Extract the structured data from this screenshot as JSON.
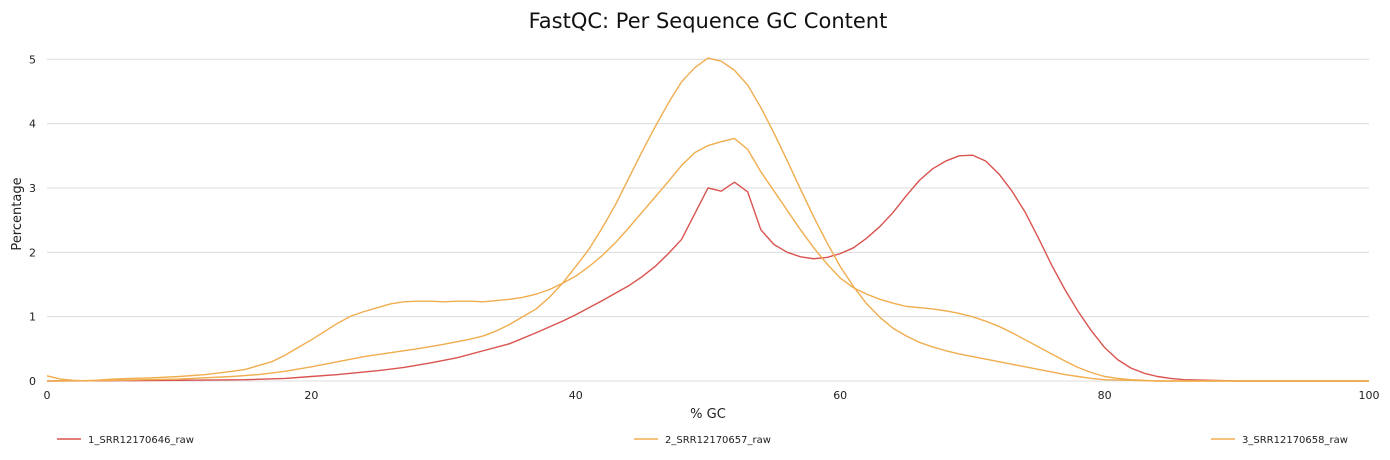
{
  "chart_data": {
    "type": "line",
    "title": "FastQC: Per Sequence GC Content",
    "xlabel": "% GC",
    "ylabel": "Percentage",
    "xlim": [
      0,
      100
    ],
    "ylim": [
      0,
      5.3
    ],
    "x_ticks": [
      0,
      20,
      40,
      60,
      80,
      100
    ],
    "y_ticks": [
      0,
      1,
      2,
      3,
      4,
      5
    ],
    "grid": "horizontal",
    "legend_position": "bottom",
    "series": [
      {
        "name": "1_SRR12170646_raw",
        "color": "#d9534f",
        "points": [
          [
            0,
            0
          ],
          [
            10,
            0.01
          ],
          [
            15,
            0.02
          ],
          [
            18,
            0.04
          ],
          [
            20,
            0.07
          ],
          [
            22,
            0.1
          ],
          [
            25,
            0.16
          ],
          [
            27,
            0.21
          ],
          [
            29,
            0.28
          ],
          [
            31,
            0.36
          ],
          [
            33,
            0.47
          ],
          [
            35,
            0.58
          ],
          [
            37,
            0.75
          ],
          [
            39,
            0.93
          ],
          [
            40,
            1.03
          ],
          [
            42,
            1.25
          ],
          [
            44,
            1.48
          ],
          [
            45,
            1.62
          ],
          [
            46,
            1.78
          ],
          [
            47,
            1.98
          ],
          [
            48,
            2.2
          ],
          [
            49,
            2.6
          ],
          [
            50,
            3.0
          ],
          [
            51,
            2.95
          ],
          [
            52,
            3.09
          ],
          [
            53,
            2.94
          ],
          [
            54,
            2.35
          ],
          [
            55,
            2.12
          ],
          [
            56,
            2.0
          ],
          [
            57,
            1.93
          ],
          [
            58,
            1.9
          ],
          [
            59,
            1.92
          ],
          [
            60,
            1.98
          ],
          [
            61,
            2.07
          ],
          [
            62,
            2.22
          ],
          [
            63,
            2.4
          ],
          [
            64,
            2.62
          ],
          [
            65,
            2.88
          ],
          [
            66,
            3.12
          ],
          [
            67,
            3.3
          ],
          [
            68,
            3.42
          ],
          [
            69,
            3.5
          ],
          [
            70,
            3.51
          ],
          [
            71,
            3.42
          ],
          [
            72,
            3.22
          ],
          [
            73,
            2.95
          ],
          [
            74,
            2.62
          ],
          [
            75,
            2.22
          ],
          [
            76,
            1.8
          ],
          [
            77,
            1.42
          ],
          [
            78,
            1.08
          ],
          [
            79,
            0.78
          ],
          [
            80,
            0.52
          ],
          [
            81,
            0.33
          ],
          [
            82,
            0.2
          ],
          [
            83,
            0.12
          ],
          [
            84,
            0.07
          ],
          [
            85,
            0.04
          ],
          [
            86,
            0.02
          ],
          [
            88,
            0.01
          ],
          [
            90,
            0
          ],
          [
            100,
            0
          ]
        ]
      },
      {
        "name": "2_SRR12170657_raw",
        "color": "#f0ad4e",
        "points": [
          [
            0,
            0.08
          ],
          [
            1,
            0.03
          ],
          [
            2,
            0.01
          ],
          [
            3,
            0
          ],
          [
            5,
            0.03
          ],
          [
            8,
            0.05
          ],
          [
            10,
            0.07
          ],
          [
            12,
            0.1
          ],
          [
            14,
            0.15
          ],
          [
            15,
            0.18
          ],
          [
            16,
            0.24
          ],
          [
            17,
            0.3
          ],
          [
            18,
            0.4
          ],
          [
            19,
            0.52
          ],
          [
            20,
            0.64
          ],
          [
            21,
            0.77
          ],
          [
            22,
            0.9
          ],
          [
            23,
            1.01
          ],
          [
            24,
            1.08
          ],
          [
            25,
            1.14
          ],
          [
            26,
            1.2
          ],
          [
            27,
            1.23
          ],
          [
            28,
            1.24
          ],
          [
            29,
            1.24
          ],
          [
            30,
            1.23
          ],
          [
            31,
            1.24
          ],
          [
            32,
            1.24
          ],
          [
            33,
            1.23
          ],
          [
            34,
            1.25
          ],
          [
            35,
            1.27
          ],
          [
            36,
            1.3
          ],
          [
            37,
            1.35
          ],
          [
            38,
            1.42
          ],
          [
            39,
            1.52
          ],
          [
            40,
            1.63
          ],
          [
            41,
            1.78
          ],
          [
            42,
            1.95
          ],
          [
            43,
            2.15
          ],
          [
            44,
            2.38
          ],
          [
            45,
            2.62
          ],
          [
            46,
            2.86
          ],
          [
            47,
            3.1
          ],
          [
            48,
            3.35
          ],
          [
            49,
            3.55
          ],
          [
            50,
            3.66
          ],
          [
            51,
            3.72
          ],
          [
            52,
            3.77
          ],
          [
            53,
            3.6
          ],
          [
            54,
            3.25
          ],
          [
            55,
            2.95
          ],
          [
            56,
            2.65
          ],
          [
            57,
            2.35
          ],
          [
            58,
            2.07
          ],
          [
            59,
            1.82
          ],
          [
            60,
            1.6
          ],
          [
            61,
            1.45
          ],
          [
            62,
            1.35
          ],
          [
            63,
            1.27
          ],
          [
            64,
            1.21
          ],
          [
            65,
            1.16
          ],
          [
            66,
            1.14
          ],
          [
            67,
            1.12
          ],
          [
            68,
            1.09
          ],
          [
            69,
            1.05
          ],
          [
            70,
            1.0
          ],
          [
            71,
            0.93
          ],
          [
            72,
            0.85
          ],
          [
            73,
            0.75
          ],
          [
            74,
            0.64
          ],
          [
            75,
            0.53
          ],
          [
            76,
            0.42
          ],
          [
            77,
            0.31
          ],
          [
            78,
            0.21
          ],
          [
            79,
            0.13
          ],
          [
            80,
            0.07
          ],
          [
            81,
            0.04
          ],
          [
            82,
            0.02
          ],
          [
            84,
            0
          ],
          [
            100,
            0
          ]
        ]
      },
      {
        "name": "3_SRR12170658_raw",
        "color": "#f0ad4e",
        "points": [
          [
            0,
            0
          ],
          [
            5,
            0.01
          ],
          [
            10,
            0.03
          ],
          [
            14,
            0.07
          ],
          [
            16,
            0.1
          ],
          [
            18,
            0.15
          ],
          [
            20,
            0.22
          ],
          [
            22,
            0.3
          ],
          [
            24,
            0.38
          ],
          [
            26,
            0.44
          ],
          [
            28,
            0.5
          ],
          [
            30,
            0.57
          ],
          [
            32,
            0.65
          ],
          [
            33,
            0.7
          ],
          [
            34,
            0.78
          ],
          [
            35,
            0.88
          ],
          [
            36,
            1.0
          ],
          [
            37,
            1.12
          ],
          [
            38,
            1.3
          ],
          [
            39,
            1.52
          ],
          [
            40,
            1.78
          ],
          [
            41,
            2.05
          ],
          [
            42,
            2.38
          ],
          [
            43,
            2.74
          ],
          [
            44,
            3.15
          ],
          [
            45,
            3.56
          ],
          [
            46,
            3.95
          ],
          [
            47,
            4.32
          ],
          [
            48,
            4.65
          ],
          [
            49,
            4.87
          ],
          [
            50,
            5.02
          ],
          [
            51,
            4.97
          ],
          [
            52,
            4.83
          ],
          [
            53,
            4.6
          ],
          [
            54,
            4.25
          ],
          [
            55,
            3.85
          ],
          [
            56,
            3.42
          ],
          [
            57,
            2.98
          ],
          [
            58,
            2.55
          ],
          [
            59,
            2.15
          ],
          [
            60,
            1.78
          ],
          [
            61,
            1.47
          ],
          [
            62,
            1.2
          ],
          [
            63,
            0.99
          ],
          [
            64,
            0.82
          ],
          [
            65,
            0.7
          ],
          [
            66,
            0.6
          ],
          [
            67,
            0.53
          ],
          [
            68,
            0.47
          ],
          [
            69,
            0.42
          ],
          [
            70,
            0.38
          ],
          [
            71,
            0.34
          ],
          [
            72,
            0.3
          ],
          [
            73,
            0.26
          ],
          [
            74,
            0.22
          ],
          [
            75,
            0.18
          ],
          [
            76,
            0.14
          ],
          [
            77,
            0.1
          ],
          [
            78,
            0.07
          ],
          [
            79,
            0.04
          ],
          [
            80,
            0.02
          ],
          [
            82,
            0.01
          ],
          [
            84,
            0
          ],
          [
            100,
            0
          ]
        ]
      }
    ]
  }
}
